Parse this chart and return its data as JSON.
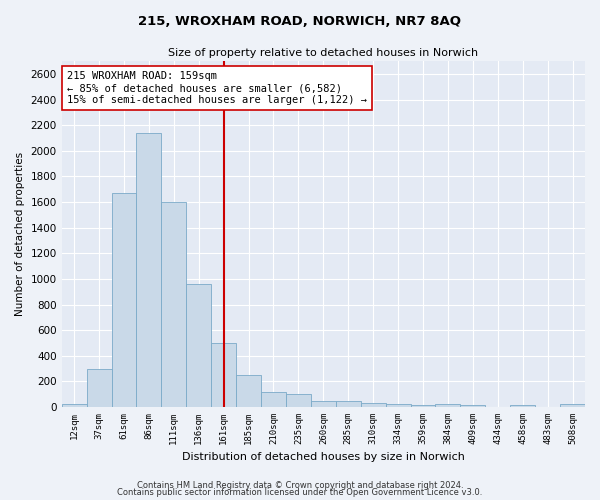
{
  "title_line1": "215, WROXHAM ROAD, NORWICH, NR7 8AQ",
  "title_line2": "Size of property relative to detached houses in Norwich",
  "xlabel": "Distribution of detached houses by size in Norwich",
  "ylabel": "Number of detached properties",
  "categories": [
    "12sqm",
    "37sqm",
    "61sqm",
    "86sqm",
    "111sqm",
    "136sqm",
    "161sqm",
    "185sqm",
    "210sqm",
    "235sqm",
    "260sqm",
    "285sqm",
    "310sqm",
    "334sqm",
    "359sqm",
    "384sqm",
    "409sqm",
    "434sqm",
    "458sqm",
    "483sqm",
    "508sqm"
  ],
  "values": [
    25,
    300,
    1670,
    2140,
    1600,
    960,
    500,
    250,
    120,
    100,
    50,
    45,
    35,
    20,
    15,
    20,
    15,
    0,
    15,
    0,
    25
  ],
  "bar_color": "#c9d9e8",
  "bar_edge_color": "#7aaac8",
  "vline_x_index": 6,
  "vline_color": "#cc0000",
  "annotation_text": "215 WROXHAM ROAD: 159sqm\n← 85% of detached houses are smaller (6,582)\n15% of semi-detached houses are larger (1,122) →",
  "annotation_box_color": "#ffffff",
  "annotation_box_edge": "#cc0000",
  "ylim": [
    0,
    2700
  ],
  "yticks": [
    0,
    200,
    400,
    600,
    800,
    1000,
    1200,
    1400,
    1600,
    1800,
    2000,
    2200,
    2400,
    2600
  ],
  "footnote1": "Contains HM Land Registry data © Crown copyright and database right 2024.",
  "footnote2": "Contains public sector information licensed under the Open Government Licence v3.0.",
  "bg_color": "#eef2f8",
  "plot_bg_color": "#e4eaf4"
}
